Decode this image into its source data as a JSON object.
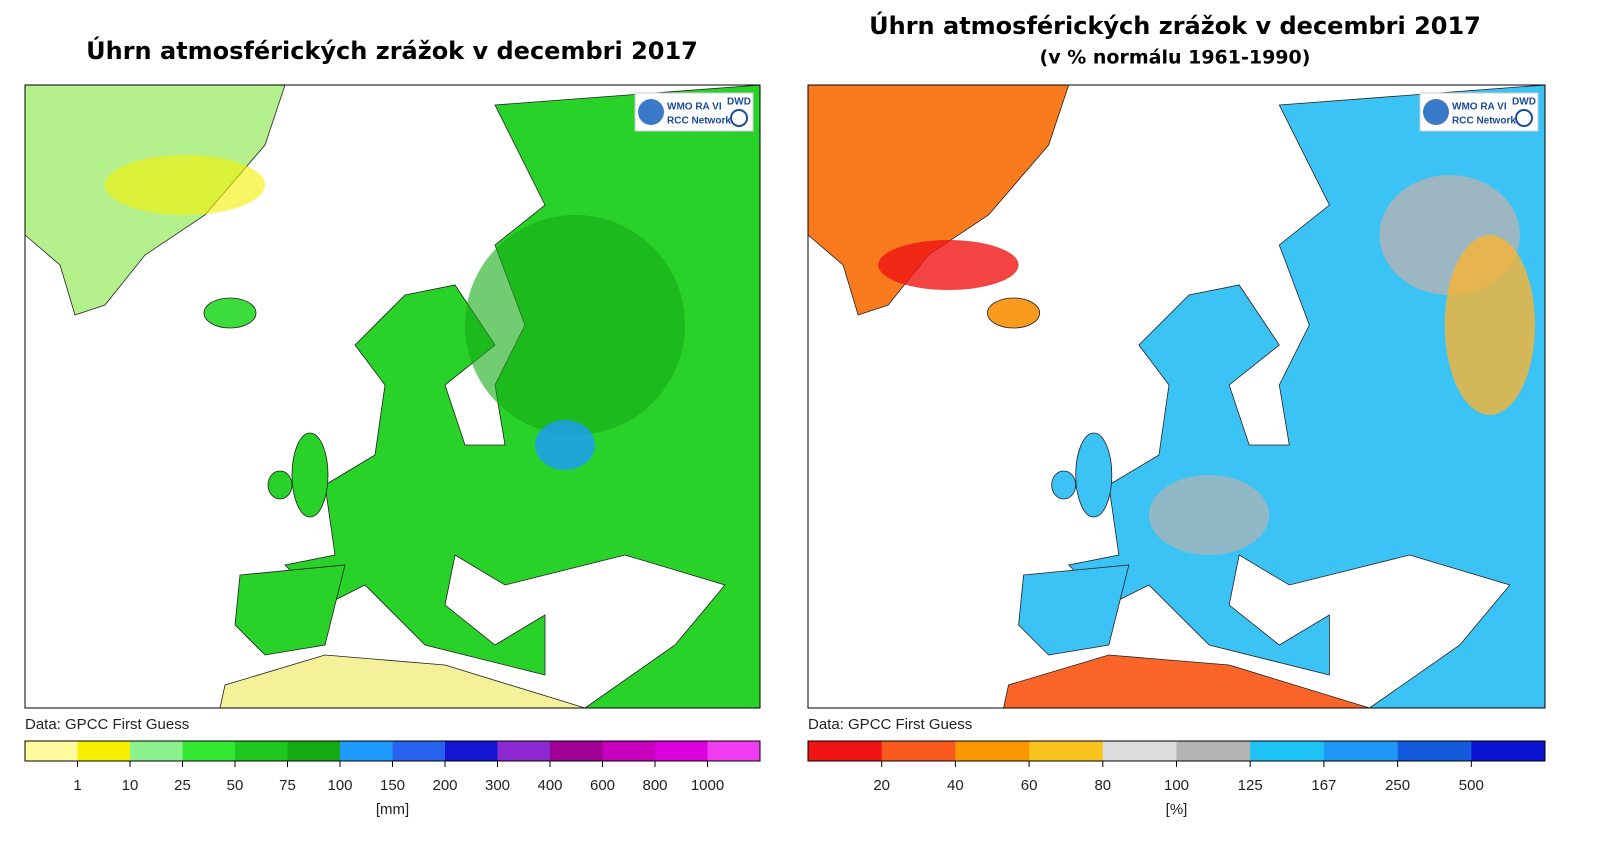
{
  "panels": [
    {
      "title": "Úhrn atmosférických zrážok v decembri 2017",
      "logo": {
        "name": "WMO RA VI",
        "network": "RCC Network",
        "agency": "DWD"
      },
      "source": "Data: GPCC First Guess",
      "colorbar": {
        "colors": [
          "#fffa9c",
          "#f5f000",
          "#8cf08c",
          "#32e632",
          "#1ec81e",
          "#14aa14",
          "#1e9bff",
          "#2864f0",
          "#1414d2",
          "#8c28d2",
          "#a00096",
          "#c800be",
          "#dc00dc",
          "#f03cf0"
        ],
        "ticks": [
          1,
          10,
          25,
          50,
          75,
          100,
          150,
          200,
          300,
          400,
          600,
          800,
          1000
        ],
        "unit": "[mm]"
      }
    },
    {
      "title": "Úhrn atmosférických zrážok v decembri 2017",
      "subtitle": "(v % normálu 1961-1990)",
      "logo": {
        "name": "WMO RA VI",
        "network": "RCC Network",
        "agency": "DWD"
      },
      "source": "Data: GPCC First Guess",
      "colorbar": {
        "colors": [
          "#f01414",
          "#fa5a1e",
          "#fa9600",
          "#fac31e",
          "#dcdcdc",
          "#b4b4b4",
          "#1ec3f5",
          "#1e96f5",
          "#145adc",
          "#0a14d2"
        ],
        "ticks": [
          20,
          40,
          60,
          80,
          100,
          125,
          167,
          250,
          500
        ],
        "unit": "[%]"
      }
    }
  ]
}
